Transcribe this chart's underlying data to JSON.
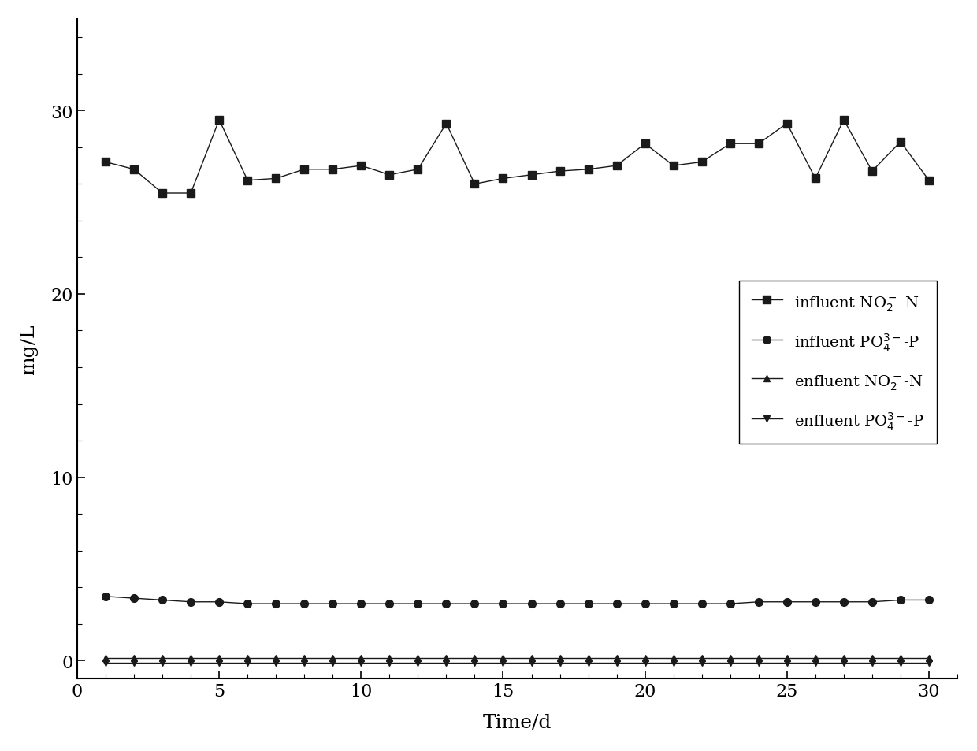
{
  "x": [
    1,
    2,
    3,
    4,
    5,
    6,
    7,
    8,
    9,
    10,
    11,
    12,
    13,
    14,
    15,
    16,
    17,
    18,
    19,
    20,
    21,
    22,
    23,
    24,
    25,
    26,
    27,
    28,
    29,
    30
  ],
  "influent_NO2_N": [
    27.2,
    26.8,
    25.5,
    25.5,
    29.5,
    26.2,
    26.3,
    26.8,
    26.8,
    27.0,
    26.5,
    26.8,
    29.3,
    26.0,
    26.3,
    26.5,
    26.7,
    26.8,
    27.0,
    28.2,
    27.0,
    27.2,
    28.2,
    28.2,
    29.3,
    26.3,
    29.5,
    26.7,
    28.3,
    26.2
  ],
  "influent_PO4_P": [
    3.5,
    3.4,
    3.3,
    3.2,
    3.2,
    3.1,
    3.1,
    3.1,
    3.1,
    3.1,
    3.1,
    3.1,
    3.1,
    3.1,
    3.1,
    3.1,
    3.1,
    3.1,
    3.1,
    3.1,
    3.1,
    3.1,
    3.1,
    3.2,
    3.2,
    3.2,
    3.2,
    3.2,
    3.3,
    3.3
  ],
  "enfluent_NO2_N": [
    0.15,
    0.15,
    0.15,
    0.15,
    0.15,
    0.15,
    0.15,
    0.15,
    0.15,
    0.15,
    0.15,
    0.15,
    0.15,
    0.15,
    0.15,
    0.15,
    0.15,
    0.15,
    0.15,
    0.15,
    0.15,
    0.15,
    0.15,
    0.15,
    0.15,
    0.15,
    0.15,
    0.15,
    0.15,
    0.15
  ],
  "enfluent_PO4_P": [
    -0.1,
    -0.1,
    -0.1,
    -0.1,
    -0.1,
    -0.1,
    -0.1,
    -0.1,
    -0.1,
    -0.1,
    -0.1,
    -0.1,
    -0.1,
    -0.1,
    -0.1,
    -0.1,
    -0.1,
    -0.1,
    -0.1,
    -0.1,
    -0.1,
    -0.1,
    -0.1,
    -0.1,
    -0.1,
    -0.1,
    -0.1,
    -0.1,
    -0.1,
    -0.1
  ],
  "xlim": [
    0,
    31
  ],
  "ylim": [
    -1,
    35
  ],
  "xticks": [
    0,
    5,
    10,
    15,
    20,
    25,
    30
  ],
  "yticks": [
    0,
    10,
    20,
    30
  ],
  "xlabel": "Time/d",
  "ylabel": "mg/L",
  "line_color": "#1a1a1a",
  "background_color": "#ffffff"
}
